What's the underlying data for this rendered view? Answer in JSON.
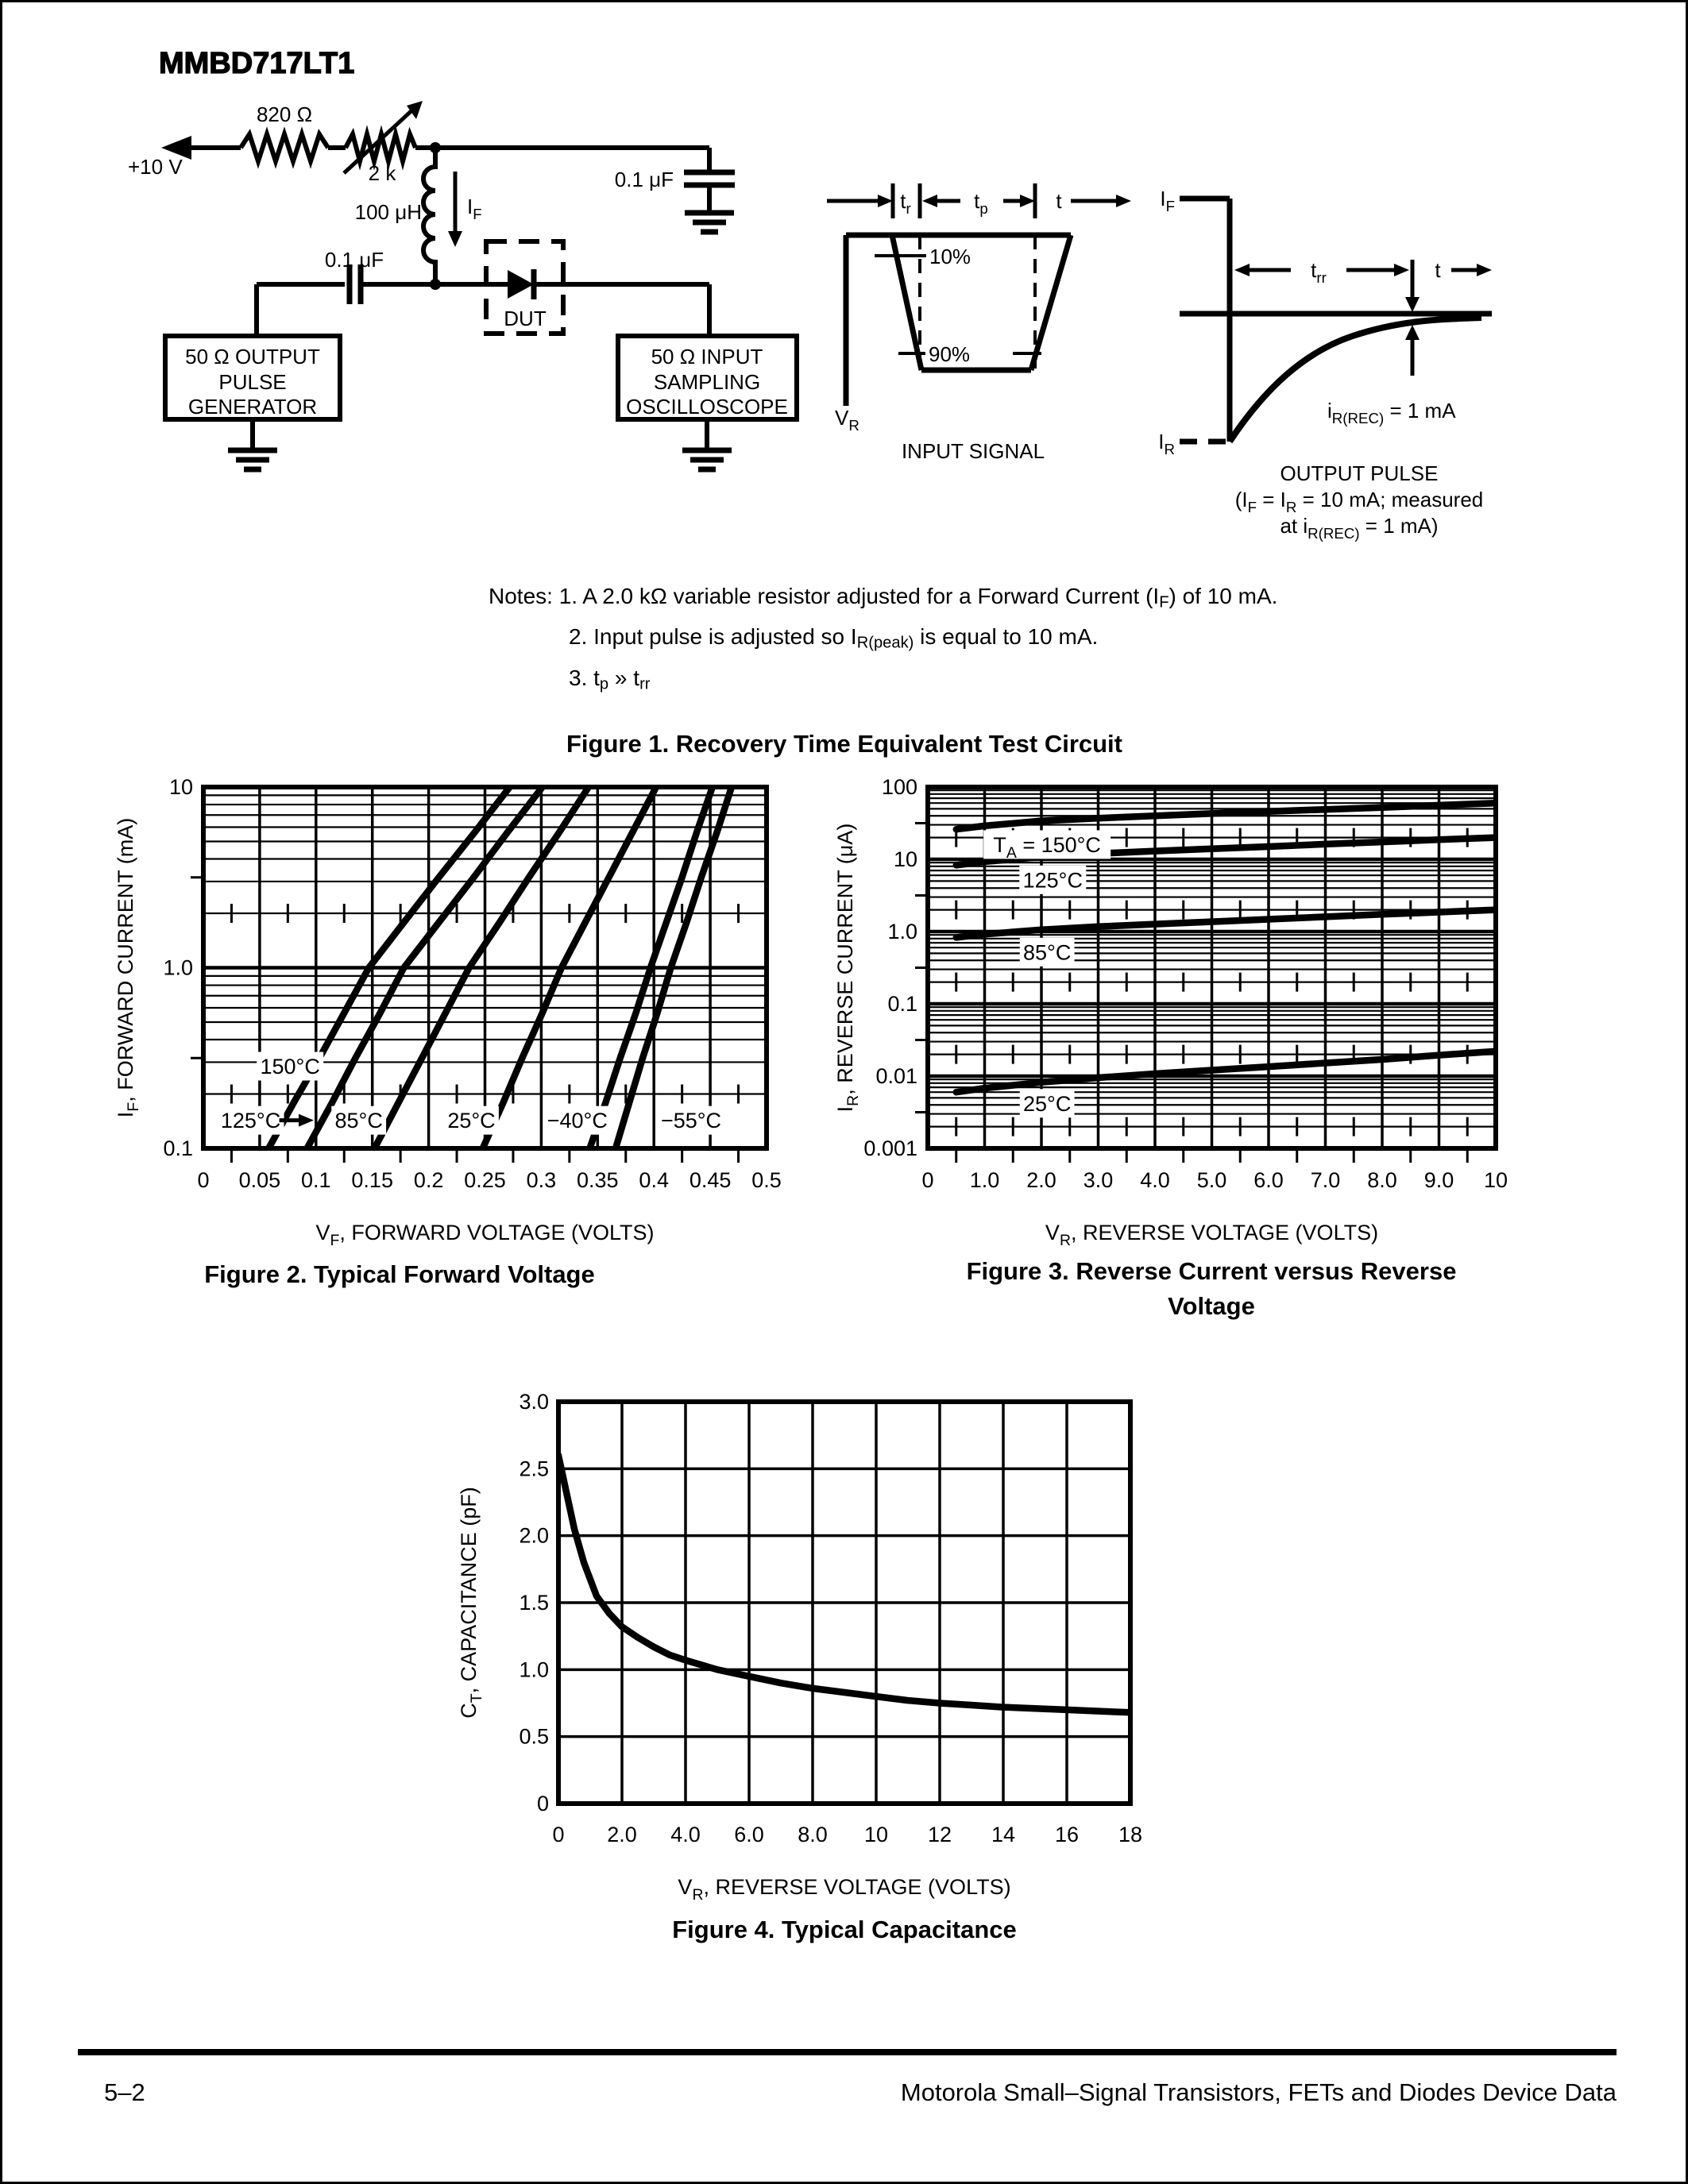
{
  "page": {
    "title": "MMBD717LT1",
    "footer_left": "5–2",
    "footer_right": "Motorola Small–Signal Transistors, FETs and Diodes Device Data"
  },
  "figure1": {
    "caption": "Figure 1. Recovery Time Equivalent Test Circuit",
    "notes": {
      "line1": [
        {
          "t": "Notes: 1. A 2.0 kΩ variable resistor adjusted for a Forward Current (I"
        },
        {
          "s": "F"
        },
        {
          "t": ") of 10 mA."
        }
      ],
      "line2": [
        {
          "t": "2. Input pulse is adjusted so I"
        },
        {
          "s": "R(peak)"
        },
        {
          "t": " is equal to 10 mA."
        }
      ],
      "line3": [
        {
          "t": "3. t"
        },
        {
          "s": "p"
        },
        {
          "t": " » t"
        },
        {
          "s": "rr"
        }
      ]
    },
    "circuit": {
      "supply": "+10 V",
      "r1": "820 Ω",
      "r2": "2 k",
      "inductor": "100 μH",
      "cap_right": "0.1 μF",
      "cap_left": "0.1 μF",
      "if_rich": [
        {
          "t": "I"
        },
        {
          "s": "F"
        }
      ],
      "dut": "DUT",
      "pulse_gen_lines": [
        "50 Ω OUTPUT",
        "PULSE",
        "GENERATOR"
      ],
      "osc_lines": [
        "50 Ω INPUT",
        "SAMPLING",
        "OSCILLOSCOPE"
      ]
    },
    "input_signal": {
      "tr": [
        {
          "t": "t"
        },
        {
          "s": "r"
        }
      ],
      "tp": [
        {
          "t": "t"
        },
        {
          "s": "p"
        }
      ],
      "t": "t",
      "p10": "10%",
      "p90": "90%",
      "vr": [
        {
          "t": "V"
        },
        {
          "s": "R"
        }
      ],
      "caption": "INPUT SIGNAL"
    },
    "output_pulse": {
      "if": [
        {
          "t": "I"
        },
        {
          "s": "F"
        }
      ],
      "ir": [
        {
          "t": "I"
        },
        {
          "s": "R"
        }
      ],
      "trr": [
        {
          "t": "t"
        },
        {
          "s": "rr"
        }
      ],
      "t": "t",
      "irec": [
        {
          "t": "i"
        },
        {
          "s": "R(REC)"
        },
        {
          "t": " = 1 mA"
        }
      ],
      "caption1": "OUTPUT PULSE",
      "caption2": [
        {
          "t": "(I"
        },
        {
          "s": "F"
        },
        {
          "t": " = I"
        },
        {
          "s": "R"
        },
        {
          "t": " = 10 mA; measured"
        }
      ],
      "caption3": [
        {
          "t": "at i"
        },
        {
          "s": "R(REC)"
        },
        {
          "t": " = 1 mA)"
        }
      ]
    }
  },
  "chart_data": [
    {
      "id": "fig2",
      "type": "line",
      "title": "Figure 2. Typical Forward Voltage",
      "caption_lines": [
        "Figure 2. Typical Forward Voltage"
      ],
      "xlabel_rich": [
        {
          "t": "V"
        },
        {
          "s": "F"
        },
        {
          "t": ", FORWARD VOLTAGE (VOLTS)"
        }
      ],
      "ylabel_rich": [
        {
          "t": "I"
        },
        {
          "s": "F"
        },
        {
          "t": ", FORWARD CURRENT (mA)"
        }
      ],
      "xscale": "linear",
      "xmin": 0,
      "xmax": 0.5,
      "yscale": "log",
      "ymin": 0.1,
      "ymax": 10,
      "grid": true,
      "xticks": [
        {
          "v": 0,
          "l": "0"
        },
        {
          "v": 0.05,
          "l": "0.05"
        },
        {
          "v": 0.1,
          "l": "0.1"
        },
        {
          "v": 0.15,
          "l": "0.15"
        },
        {
          "v": 0.2,
          "l": "0.2"
        },
        {
          "v": 0.25,
          "l": "0.25"
        },
        {
          "v": 0.3,
          "l": "0.3"
        },
        {
          "v": 0.35,
          "l": "0.35"
        },
        {
          "v": 0.4,
          "l": "0.4"
        },
        {
          "v": 0.45,
          "l": "0.45"
        },
        {
          "v": 0.5,
          "l": "0.5"
        }
      ],
      "yticks": [
        {
          "v": 10,
          "l": "10"
        },
        {
          "v": 1,
          "l": "1.0"
        },
        {
          "v": 0.1,
          "l": "0.1"
        }
      ],
      "series": [
        {
          "name": "150°C",
          "points": [
            [
              0.058,
              0.1
            ],
            [
              0.08,
              0.178
            ],
            [
              0.103,
              0.316
            ],
            [
              0.125,
              0.562
            ],
            [
              0.147,
              1
            ],
            [
              0.178,
              1.78
            ],
            [
              0.209,
              3.16
            ],
            [
              0.241,
              5.62
            ],
            [
              0.272,
              10
            ]
          ]
        },
        {
          "name": "125°C",
          "points": [
            [
              0.092,
              0.1
            ],
            [
              0.114,
              0.178
            ],
            [
              0.135,
              0.316
            ],
            [
              0.157,
              0.562
            ],
            [
              0.178,
              1
            ],
            [
              0.209,
              1.78
            ],
            [
              0.24,
              3.16
            ],
            [
              0.27,
              5.62
            ],
            [
              0.301,
              10
            ]
          ]
        },
        {
          "name": "85°C",
          "points": [
            [
              0.152,
              0.1
            ],
            [
              0.173,
              0.178
            ],
            [
              0.194,
              0.316
            ],
            [
              0.215,
              0.562
            ],
            [
              0.236,
              1
            ],
            [
              0.263,
              1.78
            ],
            [
              0.289,
              3.16
            ],
            [
              0.316,
              5.62
            ],
            [
              0.342,
              10
            ]
          ]
        },
        {
          "name": "25°C",
          "points": [
            [
              0.248,
              0.1
            ],
            [
              0.266,
              0.178
            ],
            [
              0.283,
              0.316
            ],
            [
              0.301,
              0.562
            ],
            [
              0.318,
              1
            ],
            [
              0.339,
              1.78
            ],
            [
              0.36,
              3.16
            ],
            [
              0.381,
              5.62
            ],
            [
              0.402,
              10
            ]
          ]
        },
        {
          "name": "−40°C",
          "points": [
            [
              0.343,
              0.1
            ],
            [
              0.357,
              0.178
            ],
            [
              0.37,
              0.316
            ],
            [
              0.384,
              0.562
            ],
            [
              0.397,
              1
            ],
            [
              0.411,
              1.78
            ],
            [
              0.425,
              3.16
            ],
            [
              0.438,
              5.62
            ],
            [
              0.452,
              10
            ]
          ]
        },
        {
          "name": "−55°C",
          "points": [
            [
              0.366,
              0.1
            ],
            [
              0.378,
              0.178
            ],
            [
              0.39,
              0.316
            ],
            [
              0.403,
              0.562
            ],
            [
              0.415,
              1
            ],
            [
              0.429,
              1.78
            ],
            [
              0.442,
              3.16
            ],
            [
              0.456,
              5.62
            ],
            [
              0.469,
              10
            ]
          ]
        }
      ],
      "annotations": [
        {
          "text": "150°C",
          "x": 0.077,
          "y": 0.285
        },
        {
          "text": "125°C",
          "x": 0.042,
          "y": 0.143,
          "arrow_to": 0.098
        },
        {
          "text": "85°C",
          "x": 0.138,
          "y": 0.143
        },
        {
          "text": "25°C",
          "x": 0.238,
          "y": 0.143
        },
        {
          "text": "−40°C",
          "x": 0.332,
          "y": 0.143
        },
        {
          "text": "−55°C",
          "x": 0.433,
          "y": 0.143
        }
      ]
    },
    {
      "id": "fig3",
      "type": "line",
      "title": "Figure 3. Reverse Current versus Reverse Voltage",
      "caption_lines": [
        "Figure 3. Reverse Current versus Reverse",
        "Voltage"
      ],
      "xlabel_rich": [
        {
          "t": "V"
        },
        {
          "s": "R"
        },
        {
          "t": ", REVERSE VOLTAGE (VOLTS)"
        }
      ],
      "ylabel_rich": [
        {
          "t": "I"
        },
        {
          "s": "R"
        },
        {
          "t": ", REVERSE CURRENT (μA)"
        }
      ],
      "xscale": "linear",
      "xmin": 0,
      "xmax": 10,
      "yscale": "log",
      "ymin": 0.001,
      "ymax": 100,
      "grid": true,
      "xticks": [
        {
          "v": 0,
          "l": "0"
        },
        {
          "v": 1,
          "l": "1.0"
        },
        {
          "v": 2,
          "l": "2.0"
        },
        {
          "v": 3,
          "l": "3.0"
        },
        {
          "v": 4,
          "l": "4.0"
        },
        {
          "v": 5,
          "l": "5.0"
        },
        {
          "v": 6,
          "l": "6.0"
        },
        {
          "v": 7,
          "l": "7.0"
        },
        {
          "v": 8,
          "l": "8.0"
        },
        {
          "v": 9,
          "l": "9.0"
        },
        {
          "v": 10,
          "l": "10"
        }
      ],
      "yticks": [
        {
          "v": 100,
          "l": "100"
        },
        {
          "v": 10,
          "l": "10"
        },
        {
          "v": 1,
          "l": "1.0"
        },
        {
          "v": 0.1,
          "l": "0.1"
        },
        {
          "v": 0.01,
          "l": "0.01"
        },
        {
          "v": 0.001,
          "l": "0.001"
        }
      ],
      "series": [
        {
          "name": "150°C",
          "points": [
            [
              0.5,
              26
            ],
            [
              1,
              29
            ],
            [
              2,
              34
            ],
            [
              3,
              37
            ],
            [
              4,
              40
            ],
            [
              5,
              43
            ],
            [
              6,
              46
            ],
            [
              7,
              49
            ],
            [
              8,
              52
            ],
            [
              9,
              56
            ],
            [
              10,
              60
            ]
          ]
        },
        {
          "name": "125°C",
          "points": [
            [
              0.5,
              8.3
            ],
            [
              1,
              9.3
            ],
            [
              2,
              10.8
            ],
            [
              3,
              12
            ],
            [
              4,
              13
            ],
            [
              5,
              14
            ],
            [
              6,
              15
            ],
            [
              7,
              16.2
            ],
            [
              8,
              17.4
            ],
            [
              9,
              18.7
            ],
            [
              10,
              20
            ]
          ]
        },
        {
          "name": "85°C",
          "points": [
            [
              0.5,
              0.83
            ],
            [
              1,
              0.92
            ],
            [
              2,
              1.06
            ],
            [
              3,
              1.17
            ],
            [
              4,
              1.27
            ],
            [
              5,
              1.37
            ],
            [
              6,
              1.48
            ],
            [
              7,
              1.6
            ],
            [
              8,
              1.73
            ],
            [
              9,
              1.86
            ],
            [
              10,
              2.0
            ]
          ]
        },
        {
          "name": "25°C",
          "points": [
            [
              0.5,
              0.006
            ],
            [
              1,
              0.0068
            ],
            [
              2,
              0.0082
            ],
            [
              3,
              0.0095
            ],
            [
              4,
              0.0108
            ],
            [
              5,
              0.0121
            ],
            [
              6,
              0.0135
            ],
            [
              7,
              0.0152
            ],
            [
              8,
              0.017
            ],
            [
              9,
              0.0195
            ],
            [
              10,
              0.022
            ]
          ]
        }
      ],
      "annotations": [
        {
          "rich": [
            {
              "t": "T"
            },
            {
              "s": "A"
            },
            {
              "t": " = 150°C"
            }
          ],
          "text": "TA = 150°C",
          "x": 2.1,
          "y": 16
        },
        {
          "text": "125°C",
          "x": 2.2,
          "y": 5.2
        },
        {
          "text": "85°C",
          "x": 2.1,
          "y": 0.52
        },
        {
          "text": "25°C",
          "x": 2.1,
          "y": 0.0042
        }
      ]
    },
    {
      "id": "fig4",
      "type": "line",
      "title": "Figure 4. Typical Capacitance",
      "caption_lines": [
        "Figure 4. Typical Capacitance"
      ],
      "xlabel_rich": [
        {
          "t": "V"
        },
        {
          "s": "R"
        },
        {
          "t": ", REVERSE VOLTAGE (VOLTS)"
        }
      ],
      "ylabel_rich": [
        {
          "t": "C"
        },
        {
          "s": "T"
        },
        {
          "t": ", CAPACITANCE (pF)"
        }
      ],
      "xscale": "linear",
      "xmin": 0,
      "xmax": 18,
      "yscale": "linear",
      "ymin": 0,
      "ymax": 3.0,
      "grid": true,
      "xticks": [
        {
          "v": 0,
          "l": "0"
        },
        {
          "v": 2,
          "l": "2.0"
        },
        {
          "v": 4,
          "l": "4.0"
        },
        {
          "v": 6,
          "l": "6.0"
        },
        {
          "v": 8,
          "l": "8.0"
        },
        {
          "v": 10,
          "l": "10"
        },
        {
          "v": 12,
          "l": "12"
        },
        {
          "v": 14,
          "l": "14"
        },
        {
          "v": 16,
          "l": "16"
        },
        {
          "v": 18,
          "l": "18"
        }
      ],
      "yticks": [
        {
          "v": 0,
          "l": "0"
        },
        {
          "v": 0.5,
          "l": "0.5"
        },
        {
          "v": 1,
          "l": "1.0"
        },
        {
          "v": 1.5,
          "l": "1.5"
        },
        {
          "v": 2,
          "l": "2.0"
        },
        {
          "v": 2.5,
          "l": "2.5"
        },
        {
          "v": 3,
          "l": "3.0"
        }
      ],
      "series": [
        {
          "name": "CT",
          "points": [
            [
              0,
              2.6
            ],
            [
              0.2,
              2.38
            ],
            [
              0.5,
              2.05
            ],
            [
              0.8,
              1.8
            ],
            [
              1.2,
              1.55
            ],
            [
              1.6,
              1.42
            ],
            [
              2,
              1.32
            ],
            [
              2.5,
              1.24
            ],
            [
              3,
              1.17
            ],
            [
              3.5,
              1.11
            ],
            [
              4,
              1.07
            ],
            [
              5,
              1.0
            ],
            [
              6,
              0.95
            ],
            [
              7,
              0.9
            ],
            [
              8,
              0.86
            ],
            [
              9,
              0.83
            ],
            [
              10,
              0.8
            ],
            [
              11,
              0.77
            ],
            [
              12,
              0.75
            ],
            [
              13,
              0.735
            ],
            [
              14,
              0.72
            ],
            [
              15,
              0.71
            ],
            [
              16,
              0.7
            ],
            [
              17,
              0.69
            ],
            [
              18,
              0.68
            ]
          ]
        }
      ],
      "annotations": []
    }
  ]
}
